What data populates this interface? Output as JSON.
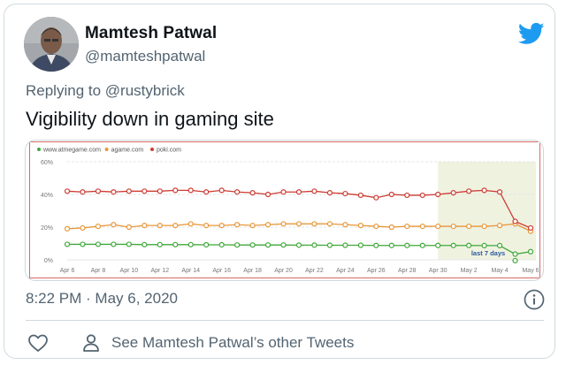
{
  "author": {
    "name": "Mamtesh Patwal",
    "handle": "@mamteshpatwal"
  },
  "reply": {
    "prefix": "Replying to",
    "mention": "@rustybrick"
  },
  "tweet": {
    "text": "Vigibility down in gaming site"
  },
  "meta": {
    "timestamp": "8:22 PM · May 6, 2020"
  },
  "actions": {
    "other_tweets": "See Mamtesh Patwal’s other Tweets"
  },
  "icons": [
    "twitter-bird-icon",
    "info-icon",
    "heart-icon",
    "person-icon"
  ],
  "colors": {
    "twitter_blue": "#1d9bf0",
    "atmegame": "#3fa83a",
    "agame": "#e8973a",
    "poki": "#cc3b33",
    "chart_border": "#d46b63",
    "highlight": "#f0f2e0"
  },
  "chart_data": {
    "type": "line",
    "x": [
      "Apr 6",
      "Apr 7",
      "Apr 8",
      "Apr 9",
      "Apr 10",
      "Apr 11",
      "Apr 12",
      "Apr 13",
      "Apr 14",
      "Apr 15",
      "Apr 16",
      "Apr 17",
      "Apr 18",
      "Apr 19",
      "Apr 20",
      "Apr 21",
      "Apr 22",
      "Apr 23",
      "Apr 24",
      "Apr 25",
      "Apr 26",
      "Apr 27",
      "Apr 28",
      "Apr 29",
      "Apr 30",
      "May 1",
      "May 2",
      "May 3",
      "May 4",
      "May 5",
      "May 6"
    ],
    "x_tick_labels": [
      "Apr 6",
      "Apr 8",
      "Apr 10",
      "Apr 12",
      "Apr 14",
      "Apr 16",
      "Apr 18",
      "Apr 20",
      "Apr 22",
      "Apr 24",
      "Apr 26",
      "Apr 28",
      "Apr 30",
      "May 2",
      "May 4",
      "May 6"
    ],
    "y_tick_labels": [
      "0%",
      "20%",
      "40%",
      "60%"
    ],
    "ylim": [
      0,
      60
    ],
    "grid": true,
    "legend_position": "top-left",
    "highlight": {
      "from": "Apr 30",
      "to": "May 6",
      "label": "last 7 days"
    },
    "series": [
      {
        "name": "www.atmegame.com",
        "color": "#3fa83a",
        "values": [
          9.5,
          9.5,
          9.5,
          9.5,
          9.5,
          9.3,
          9.3,
          9.3,
          9.3,
          9.2,
          9.2,
          9.1,
          9.1,
          9.1,
          9.1,
          9.0,
          9.0,
          8.9,
          8.9,
          8.9,
          8.8,
          8.8,
          8.8,
          8.8,
          8.8,
          8.8,
          8.8,
          8.7,
          8.7,
          3.5,
          5.0
        ],
        "extra_points": [
          {
            "x": "May 5",
            "y": -0.5
          }
        ]
      },
      {
        "name": "agame.com",
        "color": "#e8973a",
        "values": [
          19.0,
          19.5,
          20.5,
          21.5,
          20.0,
          21.0,
          21.0,
          21.0,
          22.0,
          21.0,
          21.0,
          21.5,
          21.0,
          21.5,
          22.0,
          22.0,
          22.0,
          22.0,
          21.5,
          21.0,
          20.5,
          20.0,
          20.5,
          20.5,
          20.5,
          20.5,
          20.5,
          20.5,
          21.0,
          22.0,
          17.5
        ]
      },
      {
        "name": "poki.com",
        "color": "#cc3b33",
        "values": [
          42.0,
          41.5,
          42.0,
          41.5,
          42.0,
          42.0,
          42.0,
          42.5,
          42.5,
          41.5,
          42.5,
          41.5,
          41.0,
          40.0,
          41.5,
          41.5,
          42.0,
          41.0,
          40.5,
          39.5,
          38.0,
          40.0,
          39.5,
          39.5,
          40.0,
          41.0,
          42.0,
          42.5,
          41.5,
          23.5,
          19.5
        ]
      }
    ]
  }
}
